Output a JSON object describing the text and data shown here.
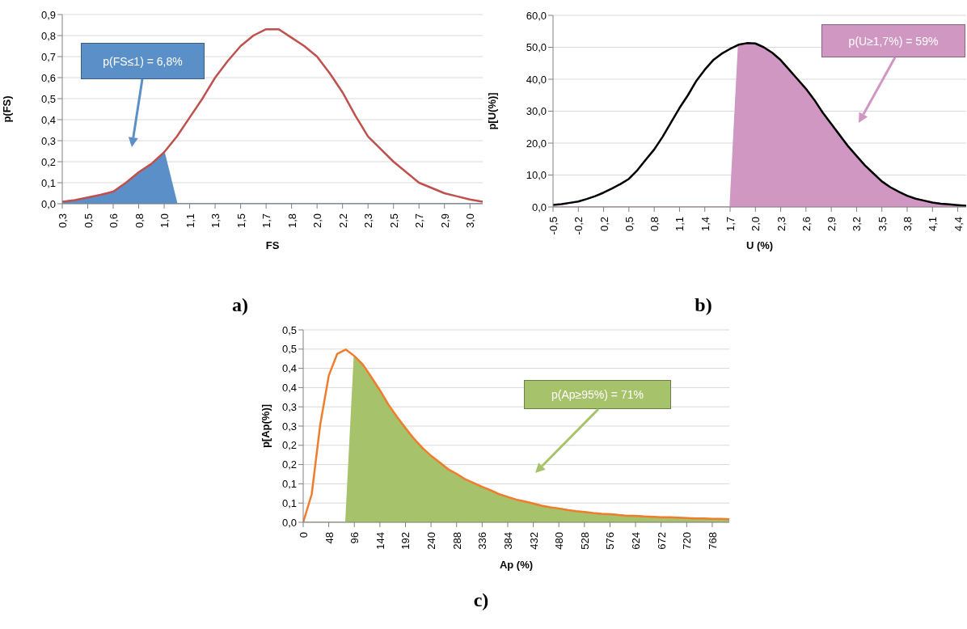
{
  "chart_data": [
    {
      "type": "line",
      "title": "a)",
      "xlabel": "FS",
      "ylabel": "p(FS)",
      "grid": "y",
      "categories": [
        "0,3",
        null,
        "0,5",
        null,
        "0,6",
        null,
        "0,8",
        null,
        "1,0",
        null,
        "1,1",
        null,
        "1,3",
        null,
        "1,5",
        null,
        "1,7",
        null,
        "1,8",
        null,
        "2,0",
        null,
        "2,2",
        null,
        "2,3",
        null,
        "2,5",
        null,
        "2,7",
        null,
        "2,9",
        null,
        "3,0",
        null
      ],
      "ylim": [
        0,
        0.9
      ],
      "yticks": [
        {
          "value": 0,
          "label": "0,0"
        },
        {
          "value": 0.1,
          "label": "0,1"
        },
        {
          "value": 0.2,
          "label": "0,2"
        },
        {
          "value": 0.3,
          "label": "0,3"
        },
        {
          "value": 0.4,
          "label": "0,4"
        },
        {
          "value": 0.5,
          "label": "0,5"
        },
        {
          "value": 0.6,
          "label": "0,6"
        },
        {
          "value": 0.7,
          "label": "0,7"
        },
        {
          "value": 0.8,
          "label": "0,8"
        },
        {
          "value": 0.9,
          "label": "0,9"
        }
      ],
      "series": [
        {
          "type": "line",
          "color": "#c0504d",
          "values": [
            0.01,
            0.017,
            0.03,
            0.042,
            0.058,
            0.1,
            0.15,
            0.19,
            0.245,
            0.32,
            0.41,
            0.5,
            0.6,
            0.68,
            0.75,
            0.8,
            0.83,
            0.83,
            0.79,
            0.75,
            0.7,
            0.62,
            0.53,
            0.42,
            0.32,
            0.26,
            0.2,
            0.15,
            0.1,
            0.075,
            0.05,
            0.035,
            0.02,
            0.01
          ]
        },
        {
          "type": "area",
          "color": "#5b8fc7",
          "values": [
            0.01,
            0.017,
            0.03,
            0.042,
            0.058,
            0.1,
            0.15,
            0.19,
            0.245,
            0,
            0,
            0,
            0,
            0,
            0,
            0,
            0,
            0,
            0,
            0,
            0,
            0,
            0,
            0,
            0,
            0,
            0,
            0,
            0,
            0,
            0,
            0,
            0,
            0
          ]
        }
      ],
      "annotations": [
        "p(FS≤1) = 6,8%"
      ]
    },
    {
      "type": "line",
      "title": "b)",
      "xlabel": "U (%)",
      "ylabel": "p[U(%)]",
      "grid": "y",
      "categories": [
        "-0,5",
        null,
        null,
        "-0,2",
        null,
        null,
        "0,2",
        null,
        null,
        "0,5",
        null,
        null,
        "0,8",
        null,
        null,
        "1,1",
        null,
        null,
        "1,4",
        null,
        null,
        "1,7",
        null,
        null,
        "2,0",
        null,
        null,
        "2,3",
        null,
        null,
        "2,6",
        null,
        null,
        "2,9",
        null,
        null,
        "3,2",
        null,
        null,
        "3,5",
        null,
        null,
        "3,8",
        null,
        null,
        "4,1",
        null,
        null,
        "4,4",
        null
      ],
      "ylim": [
        0,
        60
      ],
      "yticks": [
        {
          "value": 0,
          "label": "0,0"
        },
        {
          "value": 10,
          "label": "10,0"
        },
        {
          "value": 20,
          "label": "20,0"
        },
        {
          "value": 30,
          "label": "30,0"
        },
        {
          "value": 40,
          "label": "40,0"
        },
        {
          "value": 50,
          "label": "50,0"
        },
        {
          "value": 60,
          "label": "60,0"
        }
      ],
      "series": [
        {
          "type": "line",
          "color": "#000000",
          "values": [
            0.6,
            0.9,
            1.3,
            1.7,
            2.5,
            3.4,
            4.5,
            5.8,
            7.2,
            8.8,
            11.5,
            14.8,
            18,
            22,
            26.5,
            31,
            35,
            39.5,
            43,
            46,
            48,
            49.5,
            50.8,
            51.3,
            51.2,
            50,
            48.3,
            46,
            43,
            40,
            37,
            33.5,
            29.5,
            26,
            22.5,
            19,
            16,
            13,
            10.5,
            8,
            6.2,
            4.8,
            3.5,
            2.6,
            2,
            1.4,
            1,
            0.8,
            0.6,
            0.4
          ]
        },
        {
          "type": "area",
          "color": "#d197c3",
          "values": [
            0,
            0,
            0,
            0,
            0,
            0,
            0,
            0,
            0,
            0,
            0,
            0,
            0,
            0,
            0,
            0,
            0,
            0,
            0,
            0,
            0,
            0,
            50.8,
            51.3,
            51.2,
            50,
            48.3,
            46,
            43,
            40,
            37,
            33.5,
            29.5,
            26,
            22.5,
            19,
            16,
            13,
            10.5,
            8,
            6.2,
            4.8,
            3.5,
            2.6,
            2,
            1.4,
            1,
            0.8,
            0.6,
            0.4
          ]
        }
      ],
      "annotations": [
        "p(U≥1,7%) = 59%"
      ]
    },
    {
      "type": "line",
      "title": "c)",
      "xlabel": "Ap (%)",
      "ylabel": "p[Ap(%)]",
      "grid": "y",
      "categories": [
        "0",
        null,
        null,
        "48",
        null,
        null,
        "96",
        null,
        null,
        "144",
        null,
        null,
        "192",
        null,
        null,
        "240",
        null,
        null,
        "288",
        null,
        null,
        "336",
        null,
        null,
        "384",
        null,
        null,
        "432",
        null,
        null,
        "480",
        null,
        null,
        "528",
        null,
        null,
        "576",
        null,
        null,
        "624",
        null,
        null,
        "672",
        null,
        null,
        "720",
        null,
        null,
        "768",
        null,
        null
      ],
      "ylim": [
        0,
        0.5
      ],
      "yticks": [
        {
          "value": 0,
          "label": "0,0"
        },
        {
          "value": 0.05,
          "label": "0,1"
        },
        {
          "value": 0.1,
          "label": "0,1"
        },
        {
          "value": 0.15,
          "label": "0,2"
        },
        {
          "value": 0.2,
          "label": "0,2"
        },
        {
          "value": 0.25,
          "label": "0,3"
        },
        {
          "value": 0.3,
          "label": "0,3"
        },
        {
          "value": 0.35,
          "label": "0,4"
        },
        {
          "value": 0.4,
          "label": "0,4"
        },
        {
          "value": 0.45,
          "label": "0,5"
        },
        {
          "value": 0.5,
          "label": "0,5"
        }
      ],
      "series": [
        {
          "type": "line",
          "color": "#f07c2e",
          "values": [
            0,
            0.073,
            0.254,
            0.381,
            0.438,
            0.449,
            0.432,
            0.41,
            0.377,
            0.343,
            0.306,
            0.274,
            0.245,
            0.217,
            0.193,
            0.173,
            0.156,
            0.138,
            0.126,
            0.112,
            0.102,
            0.092,
            0.083,
            0.073,
            0.066,
            0.059,
            0.054,
            0.049,
            0.043,
            0.039,
            0.036,
            0.032,
            0.029,
            0.027,
            0.024,
            0.022,
            0.021,
            0.019,
            0.017,
            0.017,
            0.015,
            0.014,
            0.013,
            0.013,
            0.012,
            0.011,
            0.01,
            0.01,
            0.009,
            0.009,
            0.008
          ]
        },
        {
          "type": "area",
          "color": "#a6c26b",
          "values": [
            0,
            0,
            0,
            0,
            0,
            0,
            0.432,
            0.41,
            0.377,
            0.343,
            0.306,
            0.274,
            0.245,
            0.217,
            0.193,
            0.173,
            0.156,
            0.138,
            0.126,
            0.112,
            0.102,
            0.092,
            0.083,
            0.073,
            0.066,
            0.059,
            0.054,
            0.049,
            0.043,
            0.039,
            0.036,
            0.032,
            0.029,
            0.027,
            0.024,
            0.022,
            0.021,
            0.019,
            0.017,
            0.017,
            0.015,
            0.014,
            0.013,
            0.013,
            0.012,
            0.011,
            0.01,
            0.01,
            0.009,
            0.009,
            0.008
          ]
        }
      ],
      "annotations": [
        "p(Ap≥95%) = 71%"
      ]
    }
  ]
}
